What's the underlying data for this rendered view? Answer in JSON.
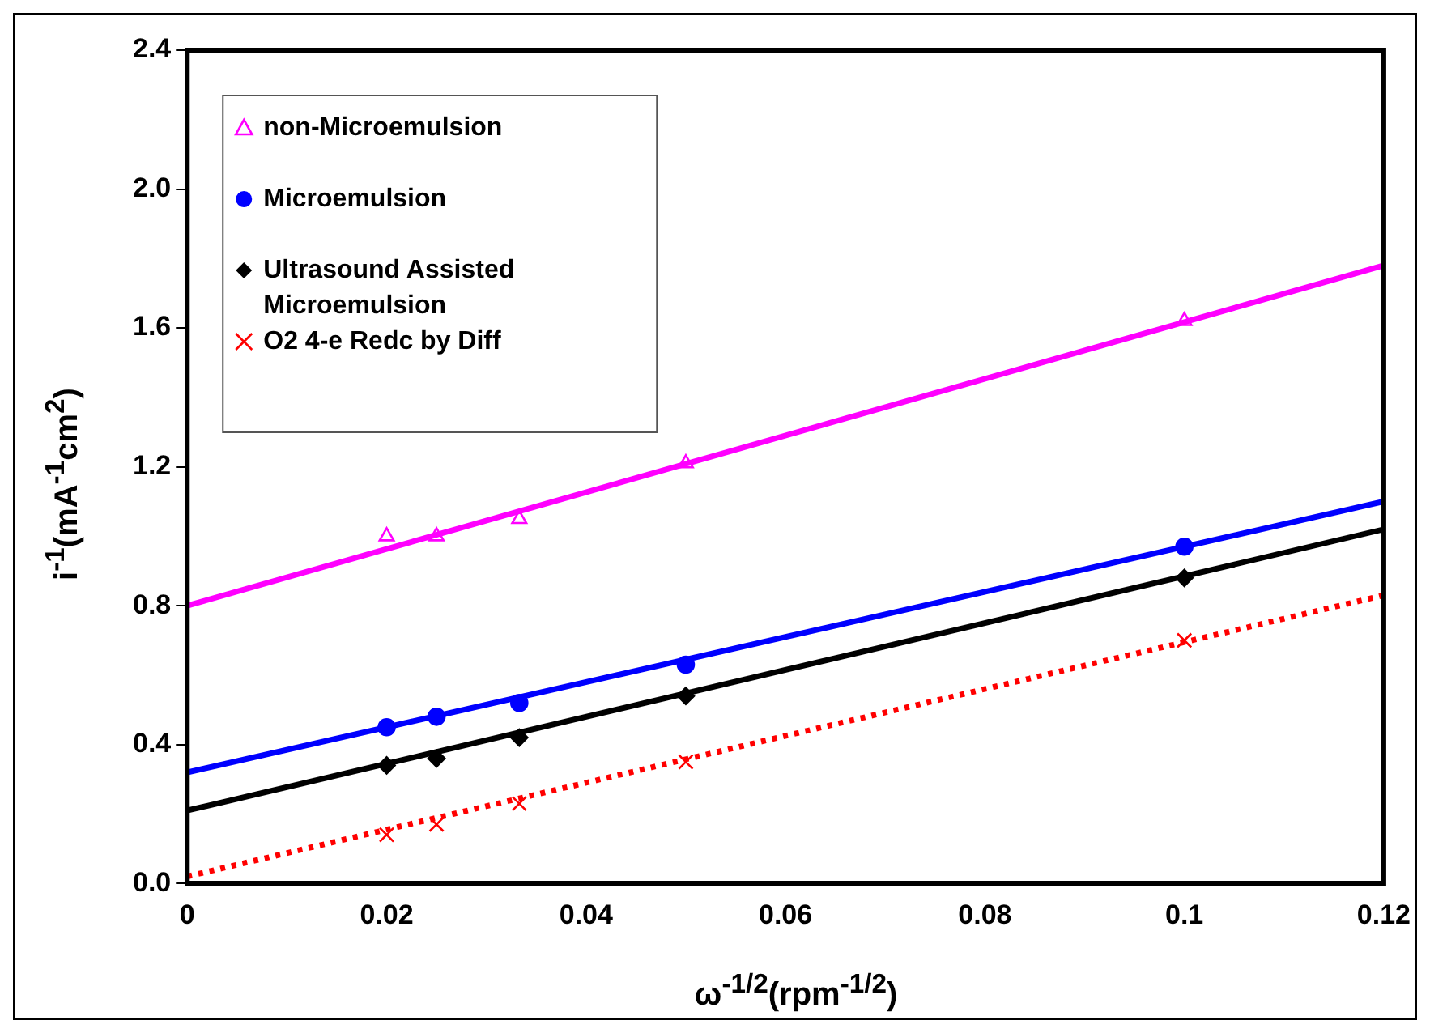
{
  "chart_data": {
    "type": "scatter",
    "xlabel": "ω$^{-1/2}$(rpm$^{-1/2}$)",
    "ylabel": "i$^{-1}$(mA$^{-1}$cm$^{2}$)",
    "xlim": [
      0,
      0.12
    ],
    "xticks": [
      0,
      0.02,
      0.04,
      0.06,
      0.08,
      0.1,
      0.12
    ],
    "ylim": [
      0,
      2.4
    ],
    "yticks": [
      {
        "value": 0,
        "label": "0.0"
      },
      {
        "value": 0.4,
        "label": "0.4"
      },
      {
        "value": 0.8,
        "label": "0.8"
      },
      {
        "value": 1.2,
        "label": "1.2"
      },
      {
        "value": 1.6,
        "label": "1.6"
      },
      {
        "value": 2.0,
        "label": "2.0"
      },
      {
        "value": 2.4,
        "label": "2.4"
      }
    ],
    "grid": false,
    "legend": "top left",
    "series": [
      {
        "name": "non-Microemulsion",
        "type": "scatter",
        "marker": "triangle",
        "color": "#ff00ff",
        "x": [
          0.02,
          0.025,
          0.0333,
          0.05,
          0.1
        ],
        "values": [
          1.0,
          1.0,
          1.05,
          1.21,
          1.62
        ]
      },
      {
        "name": "Microemulsion",
        "type": "scatter",
        "marker": "circle",
        "color": "#0000ff",
        "x": [
          0.02,
          0.025,
          0.0333,
          0.05,
          0.1
        ],
        "values": [
          0.45,
          0.48,
          0.52,
          0.63,
          0.97
        ]
      },
      {
        "name": "Ultrasound Assisted Microemulsion",
        "type": "scatter",
        "marker": "diamond",
        "color": "#000000",
        "x": [
          0.02,
          0.025,
          0.0333,
          0.05,
          0.1
        ],
        "values": [
          0.34,
          0.36,
          0.42,
          0.54,
          0.88
        ]
      },
      {
        "name": "O2 4-e Redc by Diff",
        "type": "scatter",
        "marker": "cross",
        "color": "#ff0000",
        "x": [
          0.02,
          0.025,
          0.0333,
          0.05,
          0.1
        ],
        "values": [
          0.14,
          0.17,
          0.23,
          0.35,
          0.7
        ]
      },
      {
        "type": "line",
        "marker": "none",
        "line_style": "solid",
        "color": "#ff00ff",
        "x": [
          0,
          0.12
        ],
        "values": [
          0.8,
          1.78
        ]
      },
      {
        "type": "line",
        "marker": "none",
        "line_style": "solid",
        "color": "#0000ff",
        "x": [
          0,
          0.12
        ],
        "values": [
          0.32,
          1.1
        ]
      },
      {
        "type": "line",
        "marker": "none",
        "line_style": "solid",
        "color": "#000000",
        "x": [
          0,
          0.12
        ],
        "values": [
          0.21,
          1.02
        ]
      },
      {
        "type": "line",
        "marker": "none",
        "line_style": "dotted",
        "color": "#ff0000",
        "x": [
          0,
          0.12
        ],
        "values": [
          0.02,
          0.83
        ]
      }
    ]
  }
}
